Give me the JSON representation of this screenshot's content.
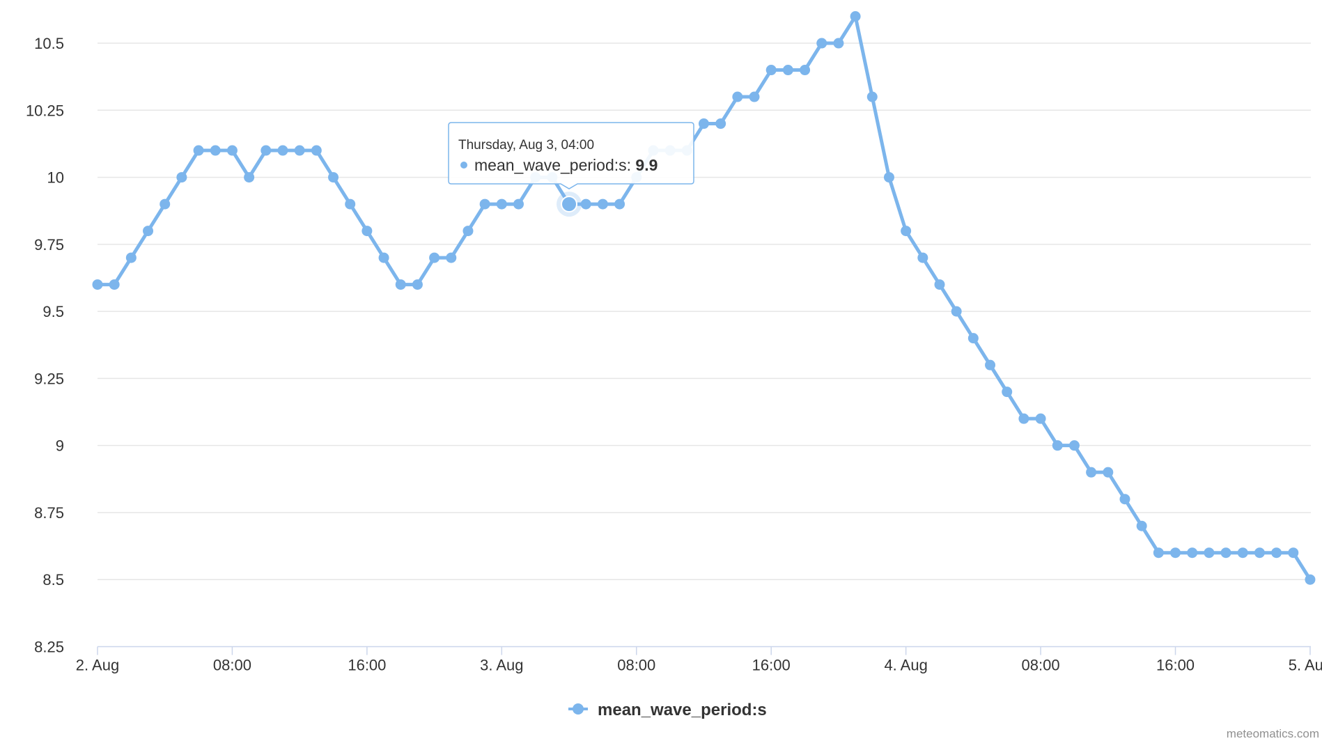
{
  "chart_data": {
    "type": "line",
    "x_start": "2. Aug 00:00",
    "x_step": "1 hour",
    "x_labels": [
      "2. Aug",
      "08:00",
      "16:00",
      "3. Aug",
      "08:00",
      "16:00",
      "4. Aug",
      "08:00",
      "16:00",
      "5. Aug"
    ],
    "y_ticks": [
      "8.25",
      "8.5",
      "8.75",
      "9",
      "9.25",
      "9.5",
      "9.75",
      "10",
      "10.25",
      "10.5"
    ],
    "ylim": [
      8.25,
      10.6
    ],
    "grid": true,
    "legend_position": "bottom-center",
    "series": [
      {
        "name": "mean_wave_period:s",
        "color": "#7cb5ec",
        "values": [
          9.6,
          9.6,
          9.7,
          9.8,
          9.9,
          10.0,
          10.1,
          10.1,
          10.1,
          10.0,
          10.1,
          10.1,
          10.1,
          10.1,
          10.0,
          9.9,
          9.8,
          9.7,
          9.6,
          9.6,
          9.7,
          9.7,
          9.8,
          9.9,
          9.9,
          9.9,
          10.0,
          10.0,
          9.9,
          9.9,
          9.9,
          9.9,
          10.0,
          10.1,
          10.1,
          10.1,
          10.2,
          10.2,
          10.3,
          10.3,
          10.4,
          10.4,
          10.4,
          10.5,
          10.5,
          10.6,
          10.3,
          10.0,
          9.8,
          9.7,
          9.6,
          9.5,
          9.4,
          9.3,
          9.2,
          9.1,
          9.1,
          9.0,
          9.0,
          8.9,
          8.9,
          8.8,
          8.7,
          8.6,
          8.6,
          8.6,
          8.6,
          8.6,
          8.6,
          8.6,
          8.6,
          8.6,
          8.5
        ]
      }
    ],
    "tooltip": {
      "header": "Thursday, Aug 3, 04:00",
      "series_label": "mean_wave_period:s:",
      "value": "9.9",
      "point_index": 28
    }
  },
  "credits": "meteomatics.com"
}
